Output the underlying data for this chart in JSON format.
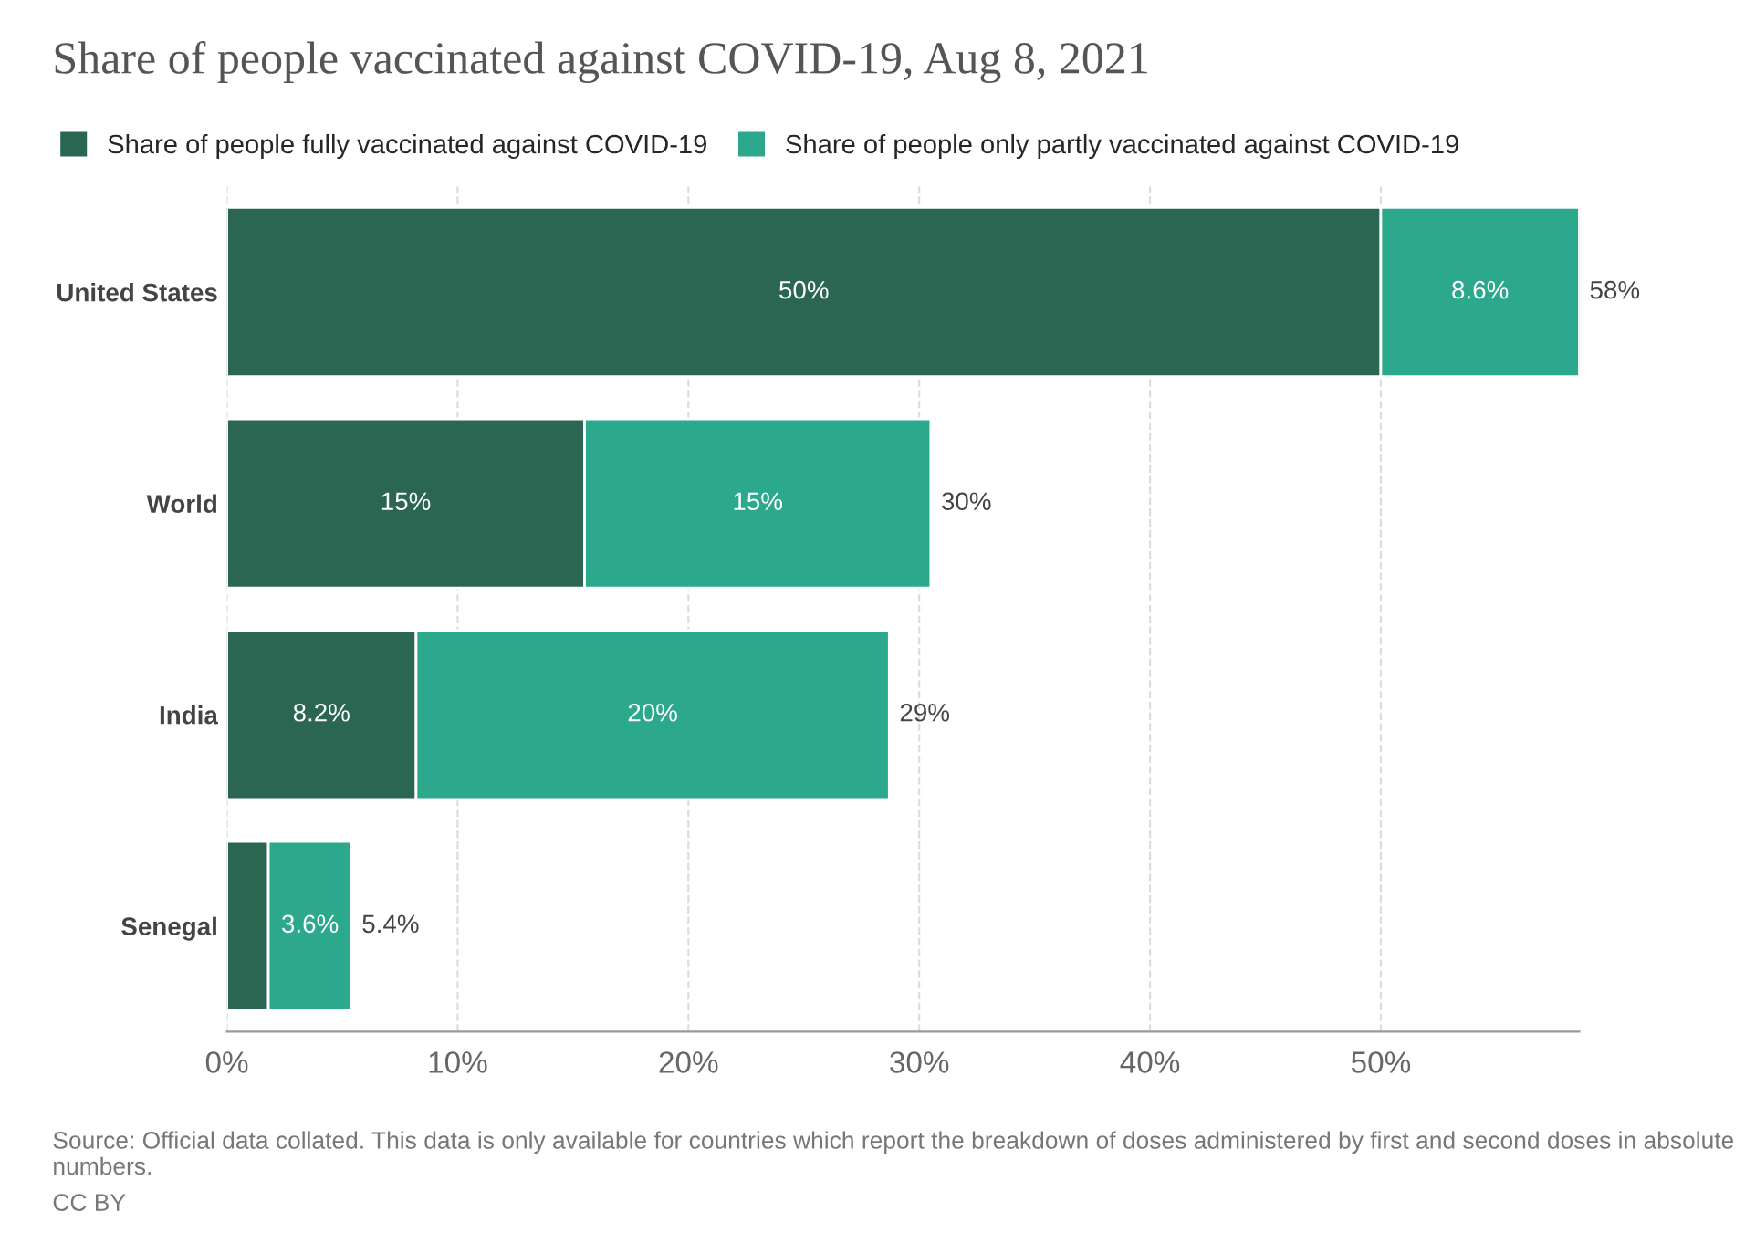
{
  "chart_data": {
    "type": "bar",
    "orientation": "horizontal",
    "stacked": true,
    "title": "Share of people vaccinated against COVID-19, Aug 8, 2021",
    "categories": [
      "United States",
      "World",
      "India",
      "Senegal"
    ],
    "series": [
      {
        "name": "Share of people fully vaccinated against COVID-19",
        "color": "#2a6651",
        "values": [
          50,
          15.5,
          8.2,
          1.8
        ],
        "value_labels": [
          "50%",
          "15%",
          "8.2%",
          null
        ]
      },
      {
        "name": "Share of people only partly vaccinated against COVID-19",
        "color": "#2ca88c",
        "values": [
          8.6,
          15.0,
          20.5,
          3.6
        ],
        "value_labels": [
          "8.6%",
          "15%",
          "20%",
          "3.6%"
        ]
      }
    ],
    "totals": [
      "58%",
      "30%",
      "29%",
      "5.4%"
    ],
    "xlim": [
      0,
      58.6
    ],
    "xticks": [
      {
        "value": 0,
        "label": "0%"
      },
      {
        "value": 10,
        "label": "10%"
      },
      {
        "value": 20,
        "label": "20%"
      },
      {
        "value": 30,
        "label": "30%"
      },
      {
        "value": 40,
        "label": "40%"
      },
      {
        "value": 50,
        "label": "50%"
      }
    ],
    "grid": "x",
    "legend": "top",
    "annotations": [
      "Source: Official data collated. This data is only available for countries which report the breakdown of doses administered by first and second doses in absolute numbers.",
      "CC BY"
    ]
  }
}
